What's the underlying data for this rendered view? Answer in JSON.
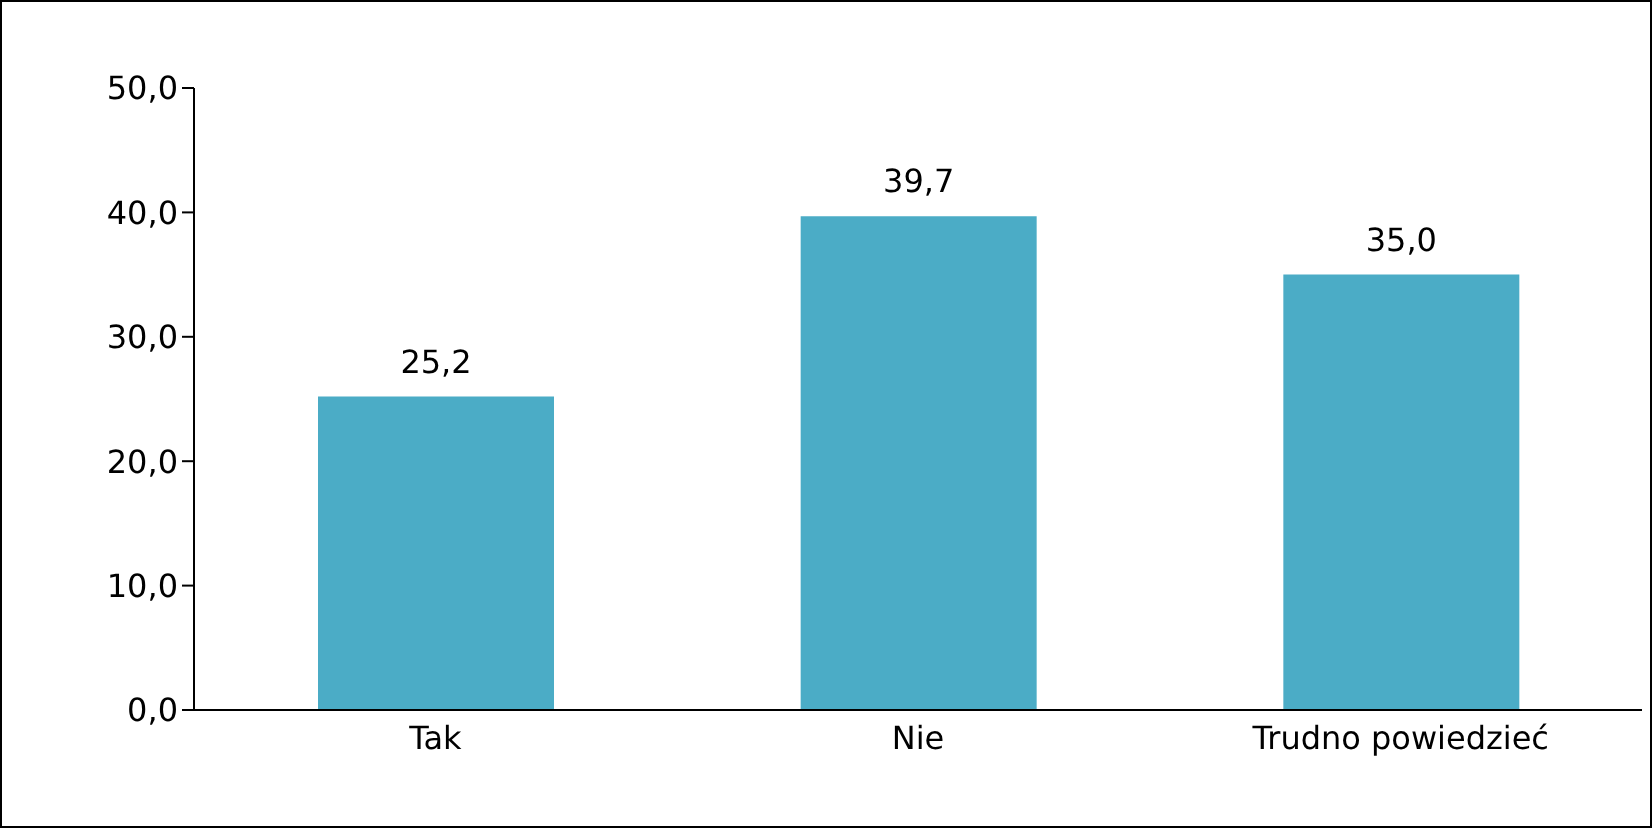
{
  "chart_data": {
    "type": "bar",
    "categories": [
      "Tak",
      "Nie",
      "Trudno powiedzieć"
    ],
    "values": [
      25.2,
      39.7,
      35.0
    ],
    "color": "#4bacc6",
    "value_labels": [
      "25,2",
      "39,7",
      "35,0"
    ],
    "ylim": [
      0,
      50
    ],
    "yticks": [
      {
        "value": 0,
        "label": "0,0"
      },
      {
        "value": 10,
        "label": "10,0"
      },
      {
        "value": 20,
        "label": "20,0"
      },
      {
        "value": 30,
        "label": "30,0"
      },
      {
        "value": 40,
        "label": "40,0"
      },
      {
        "value": 50,
        "label": "50,0"
      }
    ],
    "grid": false,
    "legend": false
  }
}
